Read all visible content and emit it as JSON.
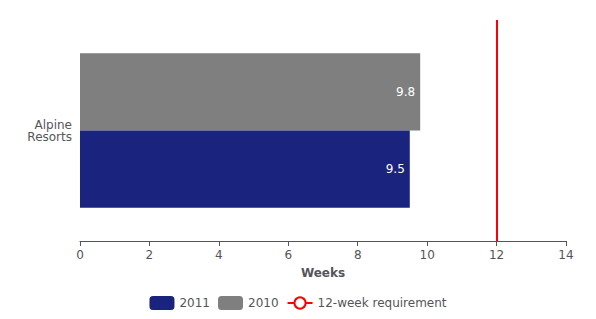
{
  "chart_data": {
    "type": "bar",
    "orientation": "horizontal",
    "categories": [
      "Alpine\nResorts"
    ],
    "series": [
      {
        "name": "2011",
        "color": "#1a237e",
        "values": [
          9.5
        ]
      },
      {
        "name": "2010",
        "color": "#7f7f7f",
        "values": [
          9.8
        ]
      }
    ],
    "reference_line": {
      "name": "12-week requirement",
      "x": 12,
      "color": "#ff0000"
    },
    "xlabel": "Weeks",
    "xlim": [
      0,
      14
    ],
    "xticks": [
      0,
      2,
      4,
      6,
      8,
      10,
      12,
      14
    ],
    "data_labels": true,
    "grid": false,
    "legend": "bottom"
  }
}
